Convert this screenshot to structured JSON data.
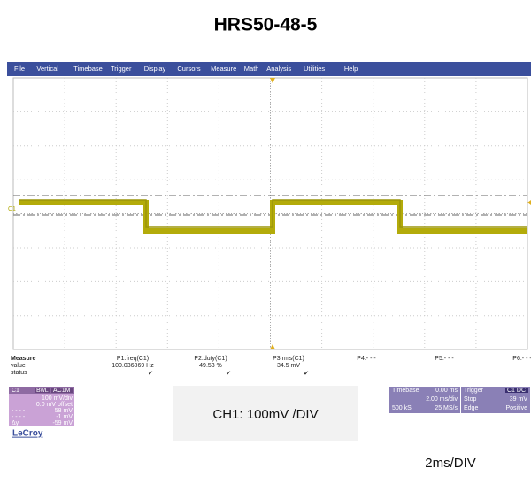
{
  "header": {
    "title": "HRS50-48-5"
  },
  "menu": [
    "File",
    "Vertical",
    "Timebase",
    "Trigger",
    "Display",
    "Cursors",
    "Measure",
    "Math",
    "Analysis",
    "Utilities",
    "Help"
  ],
  "trace_label": "C1",
  "measure": {
    "title": "Measure",
    "row_labels": [
      "value",
      "status"
    ],
    "columns": [
      {
        "name": "P1:freq(C1)",
        "value": "100.036869 Hz",
        "status": "✔"
      },
      {
        "name": "P2:duty(C1)",
        "value": "49.53 %",
        "status": "✔"
      },
      {
        "name": "P3:rms(C1)",
        "value": "34.5 mV",
        "status": "✔"
      },
      {
        "name": "P4:- - -"
      },
      {
        "name": "P5:- - -"
      },
      {
        "name": "P6:- - -"
      }
    ]
  },
  "channel": {
    "name": "C1",
    "tags": [
      "BwL",
      "AC1M"
    ],
    "scale": "100 mV/div",
    "offset": "0.0 mV offset",
    "rows": [
      {
        "label": "- - - -",
        "value": "58 mV"
      },
      {
        "label": "- - - -",
        "value": "-1 mV"
      },
      {
        "label": "Δy",
        "value": "-59 mV"
      }
    ]
  },
  "timebase": {
    "title": "Timebase",
    "delay": "0.00 ms",
    "scale": "2.00 ms/div",
    "samples": "500 kS",
    "rate": "25 MS/s"
  },
  "trigger": {
    "title": "Trigger",
    "source": "C1 DC",
    "mode": "Stop",
    "level": "39 mV",
    "type": "Edge",
    "slope": "Positive"
  },
  "brand": "LeCroy",
  "annotations": {
    "vertical": "CH1: 100mV /DIV",
    "horizontal": "2ms/DIV"
  }
}
